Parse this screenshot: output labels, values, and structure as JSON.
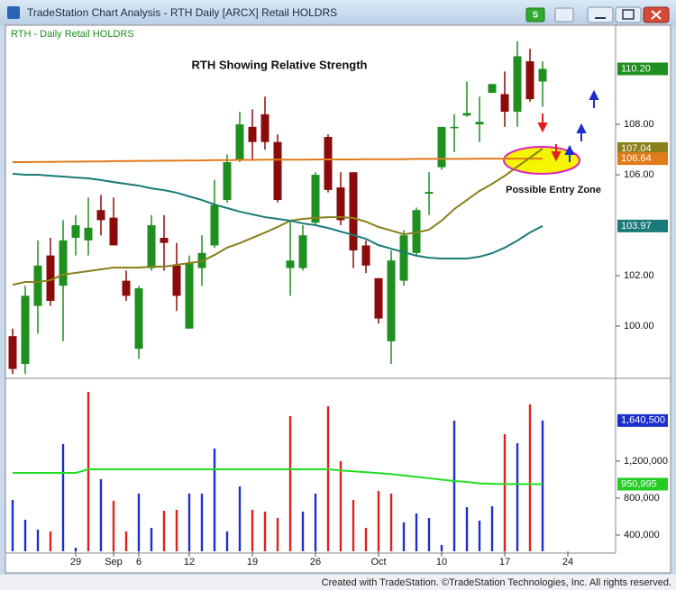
{
  "window": {
    "title": "TradeStation Chart Analysis - RTH Daily [ARCX] Retail HOLDRS",
    "button": "S",
    "footer": "Created with TradeStation. ©TradeStation Technologies, Inc. All rights reserved."
  },
  "chart_data": [
    {
      "type": "candlestick",
      "title": "RTH - Daily   Retail HOLDRS",
      "annotations": [
        "RTH Showing Relative Strength",
        "Possible Entry Zone"
      ],
      "up_color": "#1f8f1f",
      "down_color": "#8b0a0a",
      "open": [
        99.6,
        98.5,
        100.8,
        102.8,
        101.6,
        103.5,
        103.4,
        104.6,
        104.3,
        101.8,
        99.1,
        102.3,
        103.5,
        102.4,
        99.9,
        102.3,
        103.2,
        105.0,
        106.6,
        107.9,
        108.4,
        107.3,
        102.3,
        102.3,
        104.1,
        107.5,
        105.5,
        106.1,
        103.2,
        101.9,
        99.4,
        101.8,
        102.9,
        105.25,
        106.3,
        107.85,
        108.35,
        108.0,
        109.25,
        109.2,
        108.5,
        110.5,
        109.7,
        null,
        null
      ],
      "high": [
        99.9,
        101.6,
        103.4,
        103.5,
        104.2,
        104.4,
        105.1,
        105.2,
        105.1,
        102.2,
        101.6,
        104.4,
        104.4,
        103.3,
        102.8,
        103.6,
        105.8,
        106.8,
        108.5,
        108.6,
        109.1,
        107.6,
        104.2,
        104.0,
        106.1,
        107.6,
        106.1,
        106.1,
        103.4,
        101.9,
        103.0,
        103.8,
        104.7,
        106.1,
        107.9,
        108.4,
        109.7,
        109.1,
        109.6,
        110.1,
        111.3,
        111.0,
        110.5,
        null,
        null
      ],
      "low": [
        98.1,
        98.1,
        99.7,
        100.8,
        99.4,
        102.8,
        102.8,
        103.6,
        103.2,
        101.0,
        98.7,
        102.2,
        102.2,
        100.6,
        99.9,
        101.6,
        103.1,
        104.9,
        106.5,
        106.6,
        107.0,
        104.9,
        101.2,
        102.2,
        104.0,
        105.3,
        104.0,
        102.3,
        102.1,
        100.1,
        98.5,
        101.6,
        102.8,
        104.4,
        106.2,
        106.9,
        108.3,
        107.3,
        109.25,
        107.9,
        107.9,
        108.9,
        108.7,
        null,
        null
      ],
      "close": [
        98.3,
        101.2,
        102.4,
        101.0,
        103.4,
        104.0,
        103.9,
        104.2,
        103.2,
        101.2,
        101.5,
        104.0,
        103.3,
        101.2,
        102.5,
        102.9,
        104.8,
        106.5,
        108.0,
        107.3,
        107.3,
        105.0,
        102.6,
        103.6,
        106.0,
        105.4,
        104.2,
        103.0,
        102.4,
        100.3,
        102.6,
        103.6,
        104.6,
        105.32,
        107.9,
        107.9,
        108.45,
        108.1,
        109.6,
        108.5,
        110.7,
        109.0,
        110.2,
        null,
        null
      ],
      "overlays": [
        {
          "color": "#e07b1a",
          "values": [
            106.5,
            106.5,
            106.51,
            106.51,
            106.52,
            106.52,
            106.53,
            106.53,
            106.54,
            106.54,
            106.55,
            106.55,
            106.56,
            106.56,
            106.57,
            106.57,
            106.58,
            106.58,
            106.59,
            106.59,
            106.6,
            106.6,
            106.6,
            106.6,
            106.61,
            106.61,
            106.61,
            106.61,
            106.62,
            106.62,
            106.62,
            106.62,
            106.63,
            106.63,
            106.63,
            106.63,
            106.63,
            106.64,
            106.64,
            106.64,
            106.64,
            106.64,
            106.64,
            null,
            null
          ]
        },
        {
          "color": "#8a7f1a",
          "values": [
            101.64,
            101.75,
            101.75,
            101.82,
            102.04,
            102.11,
            102.18,
            102.25,
            102.32,
            102.32,
            102.32,
            102.36,
            102.36,
            102.43,
            102.5,
            102.57,
            102.82,
            103.11,
            103.29,
            103.5,
            103.71,
            103.93,
            104.18,
            104.25,
            104.29,
            104.32,
            104.32,
            104.29,
            104.14,
            103.93,
            103.79,
            103.64,
            103.71,
            103.82,
            104.18,
            104.64,
            105.0,
            105.36,
            105.64,
            105.96,
            106.32,
            106.68,
            107.04,
            null,
            null
          ]
        },
        {
          "color": "#1a7a78",
          "values": [
            106.04,
            106.0,
            106.0,
            105.96,
            105.93,
            105.89,
            105.86,
            105.79,
            105.71,
            105.64,
            105.57,
            105.46,
            105.39,
            105.29,
            105.14,
            105.0,
            104.82,
            104.68,
            104.54,
            104.43,
            104.32,
            104.25,
            104.18,
            104.07,
            104.0,
            103.89,
            103.75,
            103.61,
            103.46,
            103.21,
            103.07,
            102.93,
            102.79,
            102.71,
            102.68,
            102.68,
            102.68,
            102.75,
            102.89,
            103.11,
            103.39,
            103.71,
            103.97,
            null,
            null
          ]
        }
      ],
      "ylim": [
        98,
        111.86
      ],
      "yticks": [
        {
          "value": 100,
          "label": "100.00"
        },
        {
          "value": 102,
          "label": "102.00"
        },
        {
          "value": 106,
          "label": "106.00"
        },
        {
          "value": 108,
          "label": "108.00"
        }
      ],
      "badges": [
        {
          "value": 110.2,
          "label": "110.20",
          "color": "#1f8f1f"
        },
        {
          "value": 107.04,
          "label": "107.04",
          "color": "#8a7f1a"
        },
        {
          "value": 106.64,
          "label": "106.64",
          "color": "#e07b1a"
        },
        {
          "value": 103.97,
          "label": "103.97",
          "color": "#1a7a78"
        }
      ]
    },
    {
      "type": "bar",
      "categories": [
        null,
        null,
        null,
        null,
        null,
        "29",
        null,
        null,
        "Sep",
        null,
        "6",
        null,
        null,
        null,
        "12",
        null,
        null,
        null,
        null,
        "19",
        null,
        null,
        null,
        null,
        "26",
        null,
        null,
        null,
        null,
        "Oct",
        null,
        null,
        null,
        null,
        "10",
        null,
        null,
        null,
        null,
        "17",
        null,
        null,
        null,
        null,
        "24"
      ],
      "values": [
        780000,
        566000,
        458000,
        439000,
        1385000,
        263000,
        1951000,
        1005000,
        771000,
        439000,
        849000,
        478000,
        663000,
        673000,
        849000,
        849000,
        1337000,
        439000,
        927000,
        673000,
        654000,
        585000,
        1688000,
        654000,
        849000,
        1795000,
        1200000,
        780000,
        478000,
        878000,
        849000,
        537000,
        634000,
        585000,
        293000,
        1639000,
        702000,
        556000,
        712000,
        1493000,
        1395000,
        1815000,
        1640500,
        null,
        null
      ],
      "colors": [
        "#1c2fcc",
        "#1c2fcc",
        "#1c2fcc",
        "#e02020",
        "#1c2fcc",
        "#1c2fcc",
        "#e02020",
        "#1c2fcc",
        "#e02020",
        "#e02020",
        "#1c2fcc",
        "#1c2fcc",
        "#e02020",
        "#e02020",
        "#1c2fcc",
        "#1c2fcc",
        "#1c2fcc",
        "#1c2fcc",
        "#1c2fcc",
        "#e02020",
        "#e02020",
        "#e02020",
        "#e02020",
        "#1c2fcc",
        "#1c2fcc",
        "#e02020",
        "#e02020",
        "#e02020",
        "#e02020",
        "#e02020",
        "#e02020",
        "#1c2fcc",
        "#1c2fcc",
        "#1c2fcc",
        "#1c2fcc",
        "#1c2fcc",
        "#1c2fcc",
        "#1c2fcc",
        "#1c2fcc",
        "#e02020",
        "#1c2fcc",
        "#e02020",
        "#1c2fcc",
        null,
        null
      ],
      "overlays": [
        {
          "color": "#22dd22",
          "values": [
            1073000,
            1073000,
            1073000,
            1073000,
            1073000,
            1073000,
            1112000,
            1112000,
            1112000,
            1112000,
            1112000,
            1112000,
            1112000,
            1112000,
            1112000,
            1112000,
            1112000,
            1112000,
            1112000,
            1112000,
            1112000,
            1112000,
            1112000,
            1112000,
            1112000,
            1112000,
            1100000,
            1090000,
            1080000,
            1070000,
            1060000,
            1045000,
            1030000,
            1015000,
            1000000,
            985000,
            975000,
            960000,
            955000,
            952000,
            951000,
            951000,
            950995,
            null,
            null
          ]
        }
      ],
      "ylim": [
        224000,
        2078000
      ],
      "yticks": [
        {
          "value": 400000,
          "label": "400,000"
        },
        {
          "value": 800000,
          "label": "800,000"
        },
        {
          "value": 1200000,
          "label": "1,200,000"
        }
      ],
      "badges": [
        {
          "value": 1640500,
          "label": "1,640,500",
          "color": "#1c2fcc"
        },
        {
          "value": 950995,
          "label": "950,995",
          "color": "#22cc22"
        }
      ]
    }
  ]
}
